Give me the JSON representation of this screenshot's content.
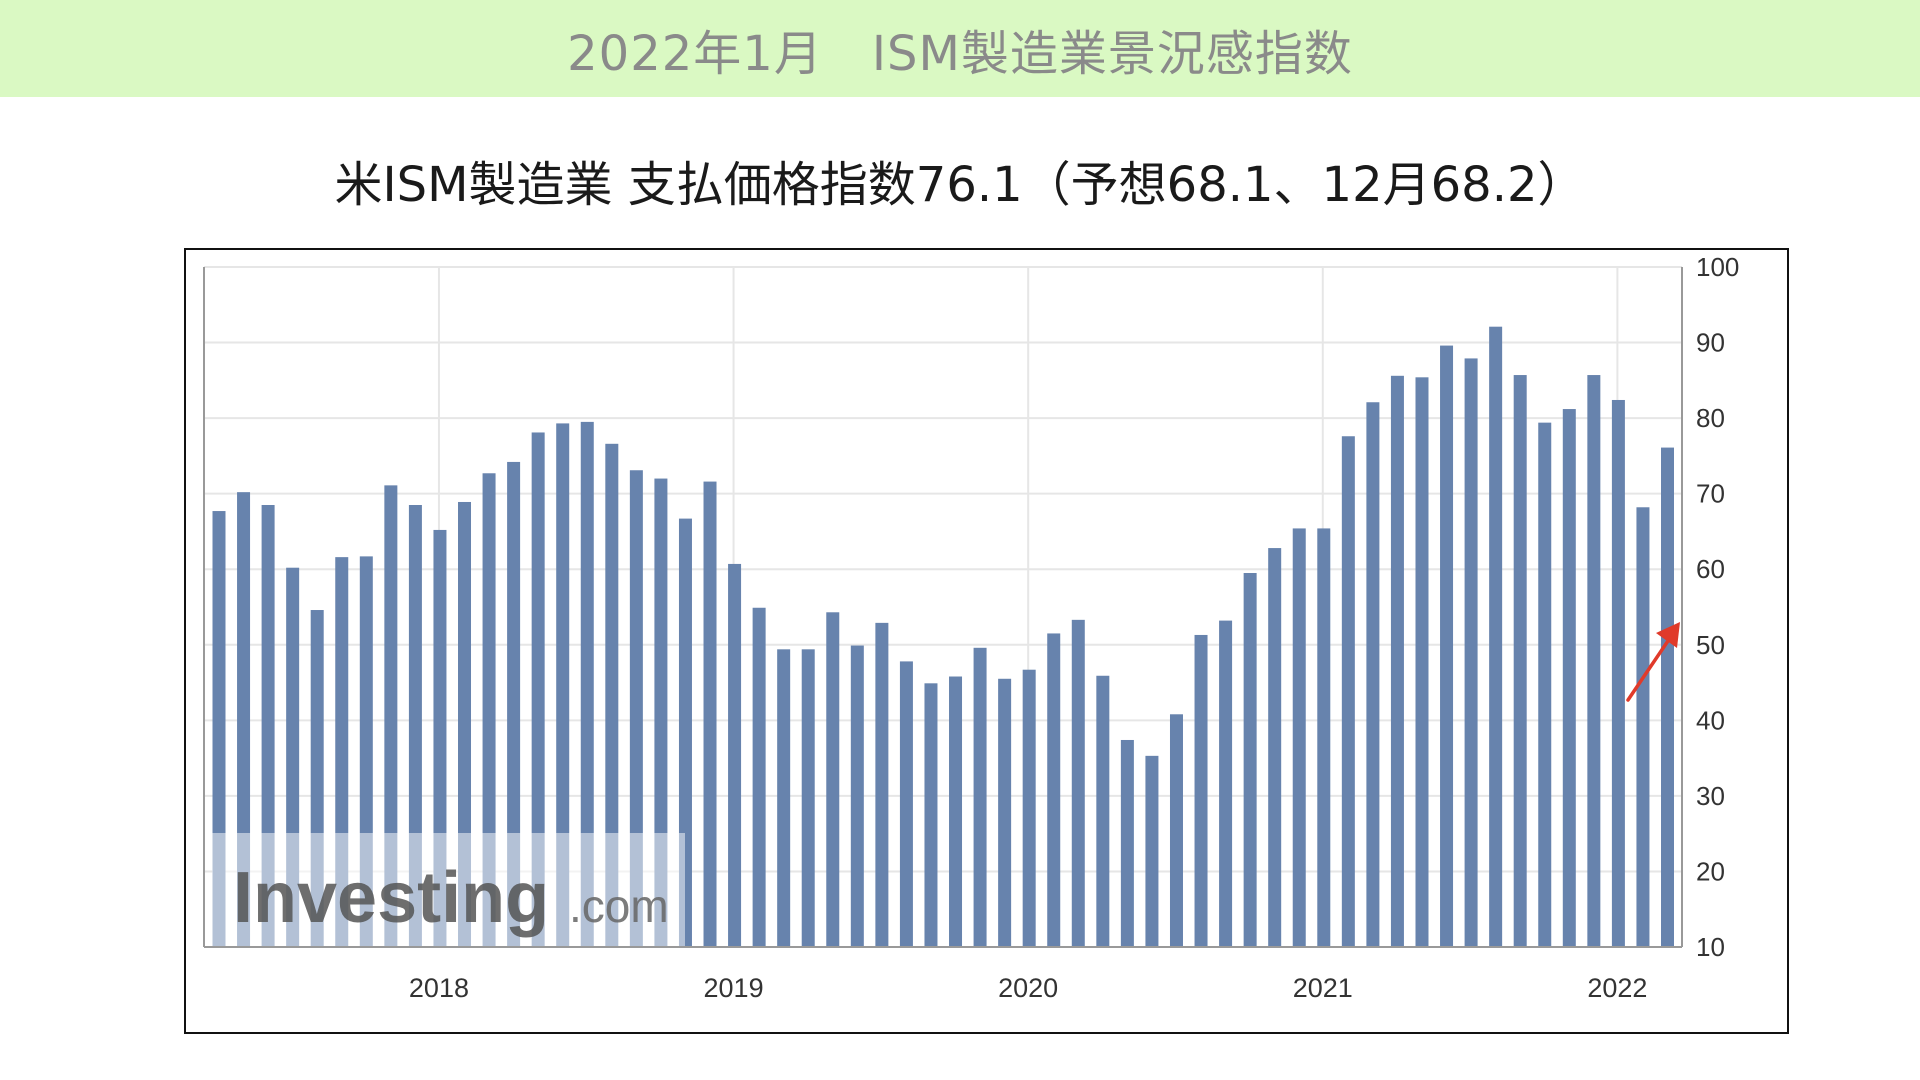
{
  "banner": {
    "title": "2022年1月　ISM製造業景況感指数"
  },
  "subtitle": "米ISM製造業 支払価格指数76.1（予想68.1、12月68.2）",
  "watermark": {
    "brand": "Investing",
    "suffix": ".com"
  },
  "colors": {
    "bar": "#6783ad",
    "banner_bg": "#daf9c3",
    "grid": "#e6e6e6",
    "arrow": "#e03a2a"
  },
  "chart_data": {
    "type": "bar",
    "title": "",
    "xlabel": "",
    "ylabel": "",
    "ylim": [
      10,
      100
    ],
    "yticks": [
      100,
      90,
      80,
      70,
      60,
      50,
      40,
      30,
      20,
      10
    ],
    "year_labels": [
      "2018",
      "2019",
      "2020",
      "2021",
      "2022"
    ],
    "grid": true,
    "y_axis_position": "right",
    "values": [
      67.7,
      70.2,
      68.5,
      60.2,
      54.6,
      61.6,
      61.7,
      71.1,
      68.5,
      65.2,
      68.9,
      72.7,
      74.2,
      78.1,
      79.3,
      79.5,
      76.6,
      73.1,
      72.0,
      66.7,
      71.6,
      60.7,
      54.9,
      49.4,
      49.4,
      54.3,
      49.9,
      52.9,
      47.8,
      44.9,
      45.8,
      49.6,
      45.5,
      46.7,
      51.5,
      53.3,
      45.9,
      37.4,
      35.3,
      40.8,
      51.3,
      53.2,
      59.5,
      62.8,
      65.4,
      65.4,
      77.6,
      82.1,
      85.6,
      85.4,
      89.6,
      87.9,
      92.1,
      85.7,
      79.4,
      81.2,
      85.7,
      82.4,
      68.2,
      76.1
    ]
  }
}
